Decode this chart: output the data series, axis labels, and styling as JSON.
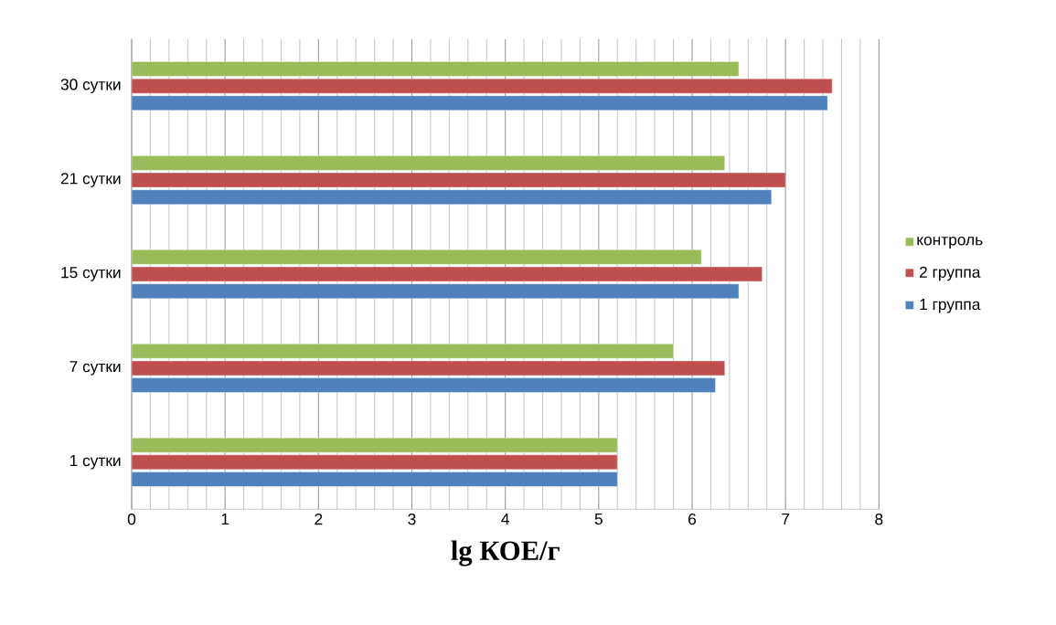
{
  "chart_data": {
    "type": "bar",
    "orientation": "horizontal",
    "xlabel": "lg КОЕ/г",
    "categories": [
      "30 сутки",
      "21 сутки",
      "15 сутки",
      "7 сутки",
      "1 сутки"
    ],
    "series": [
      {
        "name": "1 группа",
        "color": "#4f81bd",
        "values": [
          7.45,
          6.85,
          6.5,
          6.25,
          5.2
        ]
      },
      {
        "name": "2 группа",
        "color": "#c0504d",
        "values": [
          7.5,
          7.0,
          6.75,
          6.35,
          5.2
        ]
      },
      {
        "name": "контроль",
        "color": "#9bbb59",
        "values": [
          6.5,
          6.35,
          6.1,
          5.8,
          5.2
        ]
      }
    ],
    "xlim": [
      0,
      8
    ],
    "xticks": [
      0,
      1,
      2,
      3,
      4,
      5,
      6,
      7,
      8
    ],
    "grid": "x",
    "legend": "right"
  }
}
